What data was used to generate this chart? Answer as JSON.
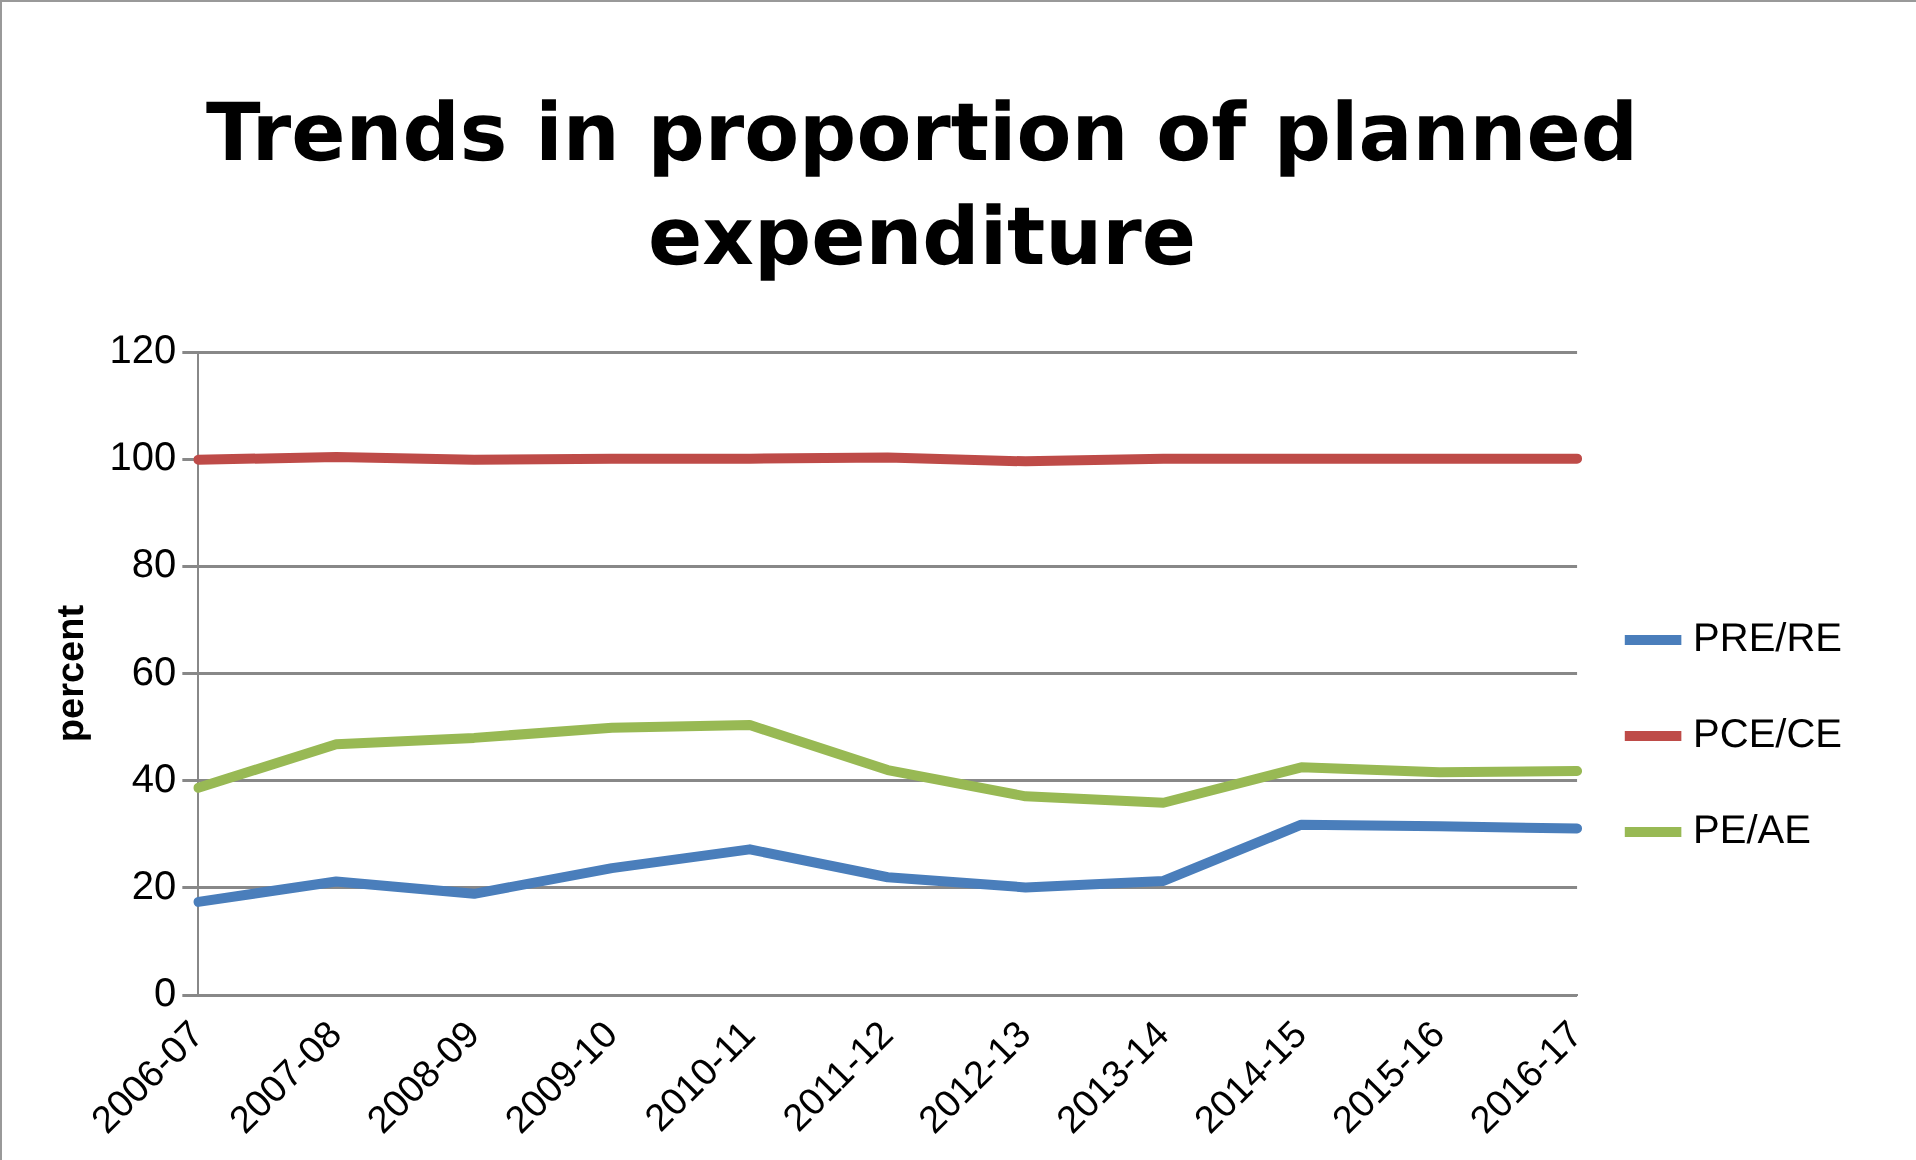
{
  "chart_data": {
    "type": "line",
    "title": "Trends in proportion of planned expenditure",
    "ylabel": "percent",
    "categories": [
      "2006-07",
      "2007-08",
      "2008-09",
      "2009-10",
      "2010-11",
      "2011-12",
      "2012-13",
      "2013-14",
      "2014-15",
      "2015-16",
      "2016-17"
    ],
    "series": [
      {
        "name": "PRE/RE",
        "color": "#4a7ebb",
        "values": [
          17.4,
          21.2,
          18.9,
          23.7,
          27.2,
          22.0,
          20.1,
          21.3,
          31.8,
          31.5,
          31.1
        ]
      },
      {
        "name": "PCE/CE",
        "color": "#be4b48",
        "values": [
          99.9,
          100.4,
          99.9,
          100.1,
          100.1,
          100.3,
          99.6,
          100.1,
          100.1,
          100.1,
          100.1
        ]
      },
      {
        "name": "PE/AE",
        "color": "#98b954",
        "values": [
          38.7,
          46.8,
          48.0,
          49.9,
          50.4,
          42.0,
          37.1,
          35.9,
          42.5,
          41.6,
          41.8
        ]
      }
    ],
    "ylim": [
      0,
      120
    ],
    "yticks": [
      0,
      20,
      40,
      60,
      80,
      100,
      120
    ],
    "grid": "y",
    "legend": "right",
    "marker": "none",
    "line_style": "solid"
  }
}
